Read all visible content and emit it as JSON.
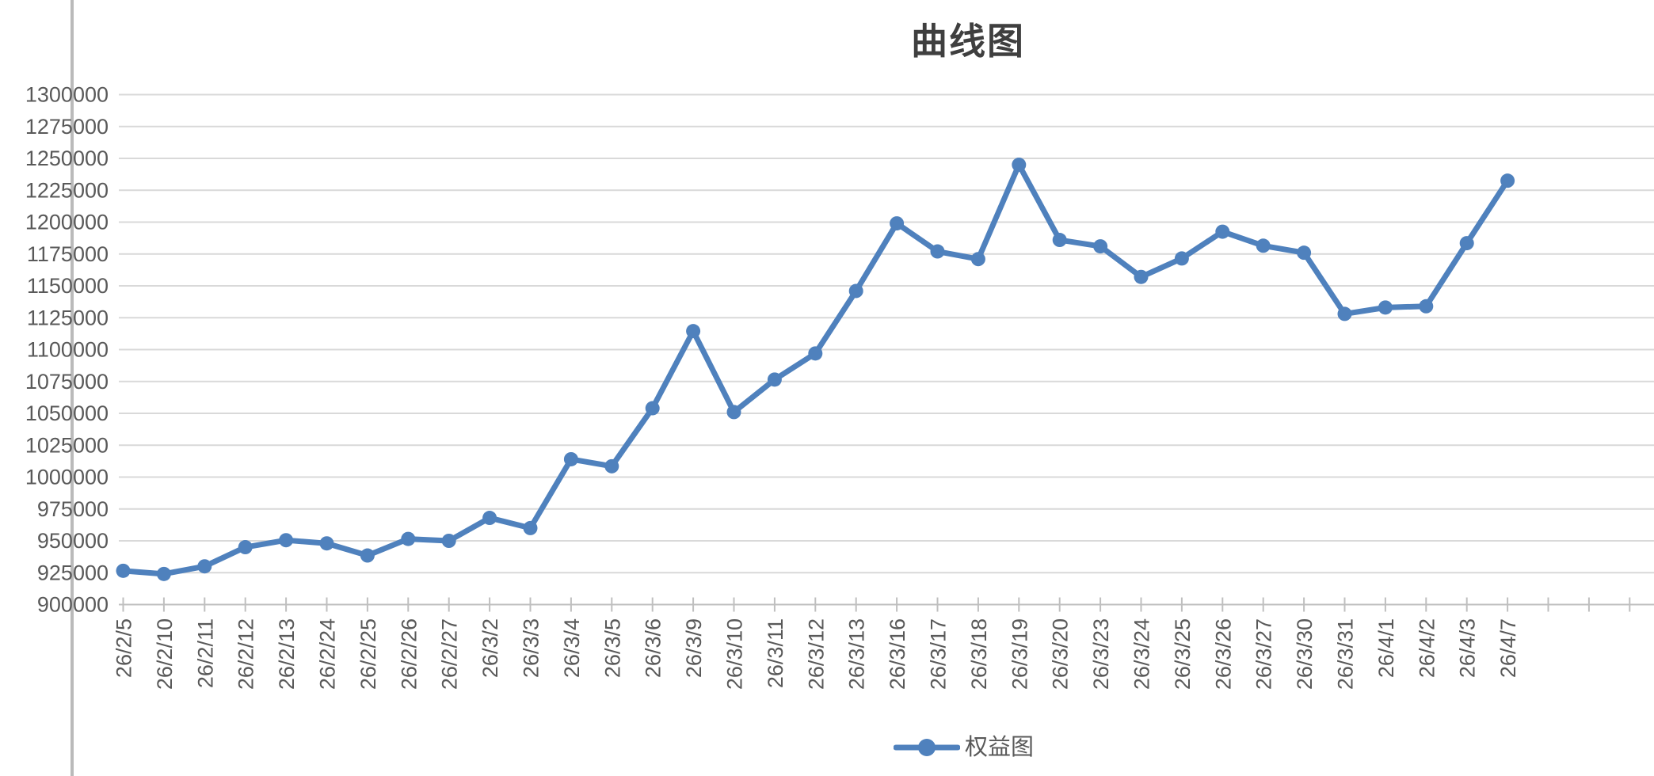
{
  "chart_data": {
    "type": "line",
    "title": "曲线图",
    "legend_position": "bottom",
    "grid": true,
    "xlabel": "",
    "ylabel": "",
    "ylim": [
      900000,
      1300000
    ],
    "ytick_step": 25000,
    "y_tick_labels": [
      "1300000",
      "1275000",
      "1250000",
      "1225000",
      "1200000",
      "1175000",
      "1150000",
      "1125000",
      "1100000",
      "1075000",
      "1050000",
      "1025000",
      "1000000",
      "975000",
      "950000",
      "925000",
      "900000"
    ],
    "unlabeled_trailing_ticks": 3,
    "categories": [
      "26/2/5",
      "26/2/10",
      "26/2/11",
      "26/2/12",
      "26/2/13",
      "26/2/24",
      "26/2/25",
      "26/2/26",
      "26/2/27",
      "26/3/2",
      "26/3/3",
      "26/3/4",
      "26/3/5",
      "26/3/6",
      "26/3/9",
      "26/3/10",
      "26/3/11",
      "26/3/12",
      "26/3/13",
      "26/3/16",
      "26/3/17",
      "26/3/18",
      "26/3/19",
      "26/3/20",
      "26/3/23",
      "26/3/24",
      "26/3/25",
      "26/3/26",
      "26/3/27",
      "26/3/30",
      "26/3/31",
      "26/4/1",
      "26/4/2",
      "26/4/3",
      "26/4/7"
    ],
    "series": [
      {
        "name": "权益图",
        "values": [
          926500,
          924000,
          930000,
          945000,
          950500,
          948000,
          938500,
          951500,
          950000,
          968000,
          960000,
          1014000,
          1008500,
          1054000,
          1114500,
          1051000,
          1076500,
          1097000,
          1146000,
          1199000,
          1177000,
          1171000,
          1245000,
          1186000,
          1181000,
          1157000,
          1171500,
          1192500,
          1181500,
          1176000,
          1128000,
          1133000,
          1134000,
          1183500,
          1232500
        ]
      }
    ],
    "colors": {
      "series": "#4f81bd",
      "gridline": "#d9d9d9",
      "axis": "#bfbfbf",
      "tick_label": "#595959",
      "title": "#3f3f3f",
      "legend_label": "#595959",
      "pane_divider": "#bababa",
      "background": "#ffffff"
    }
  }
}
